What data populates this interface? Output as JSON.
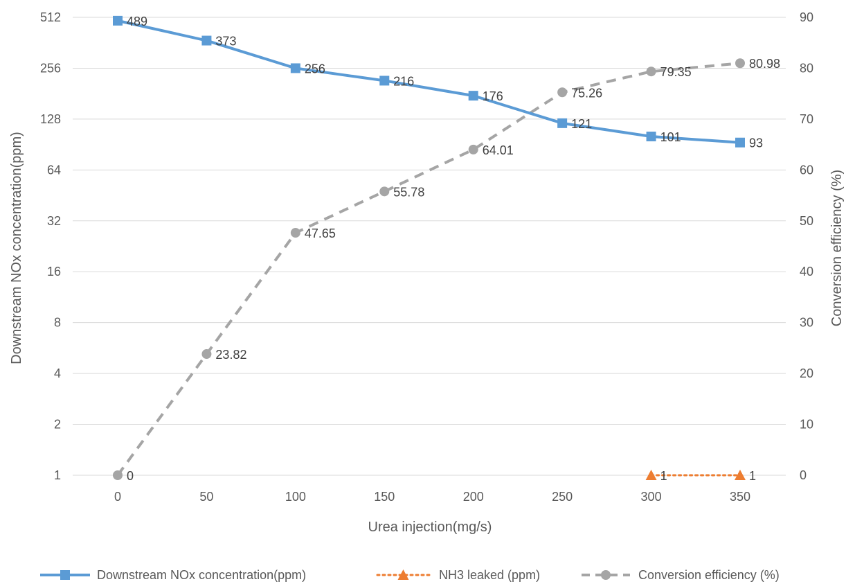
{
  "chart_data": {
    "type": "line",
    "title": "",
    "xlabel": "Urea injection(mg/s)",
    "ylabel": "Downstream NOx  concentration(ppm)",
    "y2label": "Conversion efficiency (%)",
    "x": [
      0,
      50,
      100,
      150,
      200,
      250,
      300,
      350
    ],
    "x_tick_labels": [
      "0",
      "50",
      "100",
      "150",
      "200",
      "250",
      "300",
      "350"
    ],
    "y_scale": "log2",
    "y_ticks": [
      1,
      2,
      4,
      8,
      16,
      32,
      64,
      128,
      256,
      512
    ],
    "y_tick_labels": [
      "1",
      "2",
      "4",
      "8",
      "16",
      "32",
      "64",
      "128",
      "256",
      "512"
    ],
    "ylim": [
      1,
      512
    ],
    "y2_ticks": [
      0,
      10,
      20,
      30,
      40,
      50,
      60,
      70,
      80,
      90
    ],
    "y2_tick_labels": [
      "0",
      "10",
      "20",
      "30",
      "40",
      "50",
      "60",
      "70",
      "80",
      "90"
    ],
    "y2lim": [
      0,
      90
    ],
    "grid": true,
    "legend_position": "bottom",
    "series": [
      {
        "name": "Downstream NOx  concentration(ppm)",
        "axis": "left",
        "color": "#5B9BD5",
        "line_style": "solid",
        "marker": "square",
        "x": [
          0,
          50,
          100,
          150,
          200,
          250,
          300,
          350
        ],
        "values": [
          489,
          373,
          256,
          216,
          176,
          121,
          101,
          93
        ],
        "labels": [
          "489",
          "373",
          "256",
          "216",
          "176",
          "121",
          "101",
          "93"
        ]
      },
      {
        "name": "NH3 leaked (ppm)",
        "axis": "left",
        "color": "#ED7D31",
        "line_style": "dotted",
        "marker": "triangle",
        "x": [
          300,
          350
        ],
        "values": [
          1,
          1
        ],
        "labels": [
          "1",
          "1"
        ]
      },
      {
        "name": "Conversion efficiency (%)",
        "axis": "right",
        "color": "#A5A5A5",
        "line_style": "dashed",
        "marker": "circle",
        "x": [
          0,
          50,
          100,
          150,
          200,
          250,
          300,
          350
        ],
        "values": [
          0,
          23.82,
          47.65,
          55.78,
          64.01,
          75.26,
          79.35,
          80.98
        ],
        "labels": [
          "0",
          "23.82",
          "47.65",
          "55.78",
          "64.01",
          "75.26",
          "79.35",
          "80.98"
        ]
      }
    ]
  }
}
